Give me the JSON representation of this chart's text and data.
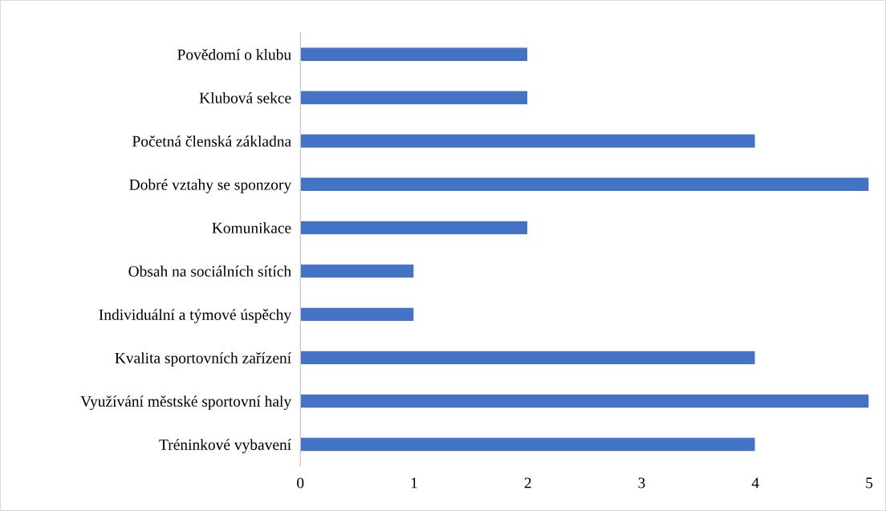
{
  "chart_data": {
    "type": "bar",
    "orientation": "horizontal",
    "categories": [
      "Povědomí o klubu",
      "Klubová sekce",
      "Početná členská základna",
      "Dobré vztahy se sponzory",
      "Komunikace",
      "Obsah na sociálních sítích",
      "Individuální a týmové úspěchy",
      "Kvalita sportovních zařízení",
      "Využívání městské sportovní haly",
      "Tréninkové vybavení"
    ],
    "values": [
      2,
      2,
      4,
      5,
      2,
      1,
      1,
      4,
      5,
      4
    ],
    "color": "#4472c4",
    "xlim": [
      0,
      5
    ],
    "xticks": [
      0,
      1,
      2,
      3,
      4,
      5
    ],
    "grid": false
  }
}
